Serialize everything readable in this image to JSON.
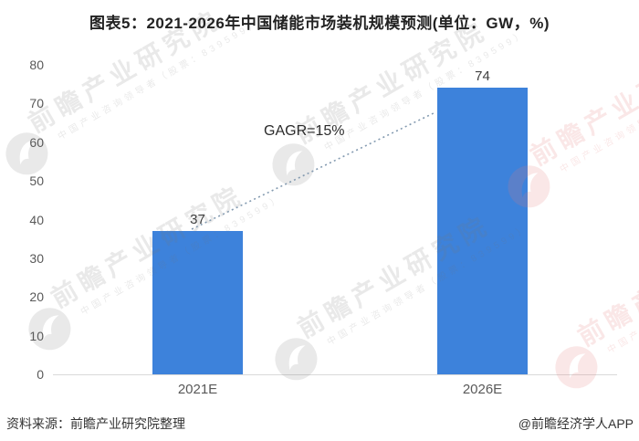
{
  "title": "图表5：2021-2026年中国储能市场装机规模预测(单位：GW，%)",
  "chart_data": {
    "type": "bar",
    "categories": [
      "2021E",
      "2026E"
    ],
    "values": [
      37,
      74
    ],
    "title": "图表5：2021-2026年中国储能市场装机规模预测(单位：GW，%)",
    "xlabel": "",
    "ylabel": "",
    "unit": "GW",
    "ylim": [
      0,
      80
    ],
    "yticks": [
      0,
      10,
      20,
      30,
      40,
      50,
      60,
      70,
      80
    ],
    "annotation": "GAGR=15%",
    "grid": "off",
    "legend": "none",
    "bar_color": "#3d82db",
    "trendline_color": "#839ab0"
  },
  "footer": {
    "source": "资料来源：前瞻产业研究院整理",
    "credit": "@前瞻经济学人APP"
  },
  "watermark": {
    "big_text": "前瞻产业研究院",
    "small_text": "中国产业咨询领导者（股票：839599）",
    "gray_color": "rgba(120,120,120,0.16)",
    "pink_color": "rgba(225,120,120,0.18)",
    "logo": "qianzhan-bird-logo"
  }
}
